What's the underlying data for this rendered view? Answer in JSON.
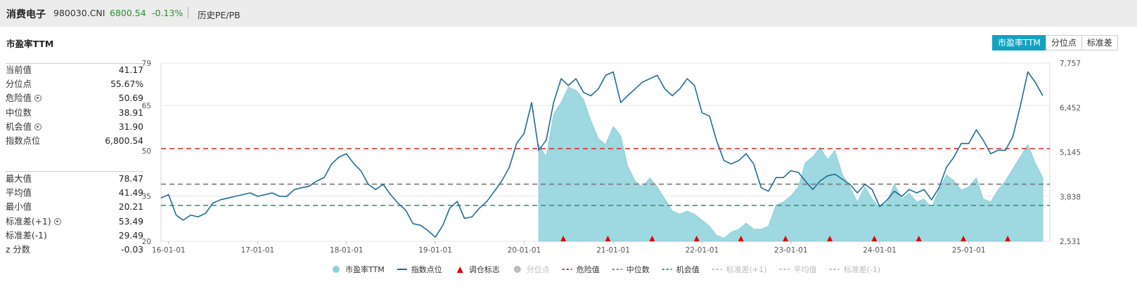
{
  "header": {
    "name": "消费电子",
    "code": "980030.CNI",
    "price": "6800.54",
    "change": "-0.13%",
    "link": "历史PE/PB"
  },
  "panel": {
    "title": "市盈率TTM",
    "tabs": [
      "市盈率TTM",
      "分位点",
      "标准差"
    ],
    "active_tab": "市盈率TTM"
  },
  "stats_top": [
    {
      "label": "当前值",
      "value": "41.17",
      "gear": false
    },
    {
      "label": "分位点",
      "value": "55.67%",
      "gear": false
    },
    {
      "label": "危险值",
      "value": "50.69",
      "gear": true
    },
    {
      "label": "中位数",
      "value": "38.91",
      "gear": false
    },
    {
      "label": "机会值",
      "value": "31.90",
      "gear": true
    },
    {
      "label": "指数点位",
      "value": "6,800.54",
      "gear": false
    }
  ],
  "stats_bottom": [
    {
      "label": "最大值",
      "value": "78.47",
      "gear": false
    },
    {
      "label": "平均值",
      "value": "41.49",
      "gear": false
    },
    {
      "label": "最小值",
      "value": "20.21",
      "gear": false
    },
    {
      "label": "标准差(+1)",
      "value": "53.49",
      "gear": true
    },
    {
      "label": "标准差(-1)",
      "value": "29.49",
      "gear": false
    },
    {
      "label": "z 分数",
      "value": "-0.03",
      "gear": false
    }
  ],
  "colors": {
    "pe_area": "#8dd1da",
    "index_line": "#1f6d93",
    "danger": "#d62728",
    "median": "#777777",
    "opportunity": "#2e9e6e",
    "marker": "#e00000",
    "disabled": "#bbbbbb",
    "tab_active": "#13a2c2"
  },
  "chart_data": {
    "type": "area",
    "x_tick_labels": [
      "16-01-01",
      "17-01-01",
      "18-01-01",
      "19-01-01",
      "20-01-01",
      "21-01-01",
      "22-01-01",
      "23-01-01",
      "24-01-01",
      "25-01-01"
    ],
    "x_range": [
      "2015-12-01",
      "2025-11-30"
    ],
    "y_left_ticks": [
      20,
      35,
      50,
      65,
      79
    ],
    "y_left_range": [
      20,
      79
    ],
    "y_right_ticks": [
      "2,531",
      "3,838",
      "5,145",
      "6,452",
      "7,757"
    ],
    "y_right_range": [
      2531,
      7757
    ],
    "reference_lines": [
      {
        "name": "危险值",
        "value": 50.69
      },
      {
        "name": "中位数",
        "value": 38.91
      },
      {
        "name": "机会值",
        "value": 31.9
      }
    ],
    "series": [
      {
        "name": "市盈率TTM",
        "kind": "area",
        "points": [
          [
            "2020-03-01",
            52
          ],
          [
            "2020-04-01",
            48
          ],
          [
            "2020-05-01",
            62
          ],
          [
            "2020-06-01",
            66
          ],
          [
            "2020-07-01",
            71
          ],
          [
            "2020-08-01",
            70
          ],
          [
            "2020-09-01",
            67
          ],
          [
            "2020-10-01",
            60
          ],
          [
            "2020-11-01",
            54
          ],
          [
            "2020-12-01",
            52
          ],
          [
            "2021-01-01",
            58
          ],
          [
            "2021-02-01",
            55
          ],
          [
            "2021-03-01",
            45
          ],
          [
            "2021-04-01",
            40
          ],
          [
            "2021-05-01",
            38
          ],
          [
            "2021-06-01",
            41
          ],
          [
            "2021-07-01",
            38
          ],
          [
            "2021-08-01",
            34
          ],
          [
            "2021-09-01",
            30
          ],
          [
            "2021-10-01",
            29
          ],
          [
            "2021-11-01",
            30
          ],
          [
            "2021-12-01",
            29
          ],
          [
            "2022-01-01",
            27
          ],
          [
            "2022-02-01",
            25
          ],
          [
            "2022-03-01",
            22
          ],
          [
            "2022-04-01",
            21
          ],
          [
            "2022-05-01",
            23
          ],
          [
            "2022-06-01",
            24
          ],
          [
            "2022-07-01",
            26
          ],
          [
            "2022-08-01",
            24
          ],
          [
            "2022-09-01",
            24
          ],
          [
            "2022-10-01",
            25
          ],
          [
            "2022-11-01",
            32
          ],
          [
            "2022-12-01",
            33
          ],
          [
            "2023-01-01",
            35
          ],
          [
            "2023-02-01",
            38
          ],
          [
            "2023-03-01",
            46
          ],
          [
            "2023-04-01",
            48
          ],
          [
            "2023-05-01",
            51
          ],
          [
            "2023-06-01",
            47
          ],
          [
            "2023-07-01",
            50
          ],
          [
            "2023-08-01",
            42
          ],
          [
            "2023-09-01",
            38
          ],
          [
            "2023-10-01",
            33
          ],
          [
            "2023-11-01",
            38
          ],
          [
            "2023-12-01",
            34
          ],
          [
            "2024-01-01",
            31
          ],
          [
            "2024-02-01",
            33
          ],
          [
            "2024-03-01",
            39
          ],
          [
            "2024-04-01",
            34
          ],
          [
            "2024-05-01",
            36
          ],
          [
            "2024-06-01",
            33
          ],
          [
            "2024-07-01",
            34
          ],
          [
            "2024-08-01",
            31
          ],
          [
            "2024-09-01",
            37
          ],
          [
            "2024-10-01",
            42
          ],
          [
            "2024-11-01",
            40
          ],
          [
            "2024-12-01",
            37
          ],
          [
            "2025-01-01",
            38
          ],
          [
            "2025-02-01",
            41
          ],
          [
            "2025-03-01",
            34
          ],
          [
            "2025-04-01",
            33
          ],
          [
            "2025-05-01",
            37
          ],
          [
            "2025-06-01",
            40
          ],
          [
            "2025-07-01",
            44
          ],
          [
            "2025-08-01",
            48
          ],
          [
            "2025-09-01",
            52
          ],
          [
            "2025-10-01",
            46
          ],
          [
            "2025-11-01",
            41
          ]
        ]
      },
      {
        "name": "指数点位",
        "kind": "line",
        "points": [
          [
            "2015-12-01",
            3800
          ],
          [
            "2016-01-01",
            3900
          ],
          [
            "2016-02-01",
            3300
          ],
          [
            "2016-03-01",
            3150
          ],
          [
            "2016-04-01",
            3300
          ],
          [
            "2016-05-01",
            3250
          ],
          [
            "2016-06-01",
            3350
          ],
          [
            "2016-07-01",
            3650
          ],
          [
            "2016-08-01",
            3750
          ],
          [
            "2016-09-01",
            3800
          ],
          [
            "2016-10-01",
            3850
          ],
          [
            "2016-11-01",
            3900
          ],
          [
            "2016-12-01",
            3950
          ],
          [
            "2017-01-01",
            3850
          ],
          [
            "2017-02-01",
            3900
          ],
          [
            "2017-03-01",
            3950
          ],
          [
            "2017-04-01",
            3850
          ],
          [
            "2017-05-01",
            3850
          ],
          [
            "2017-06-01",
            4050
          ],
          [
            "2017-07-01",
            4100
          ],
          [
            "2017-08-01",
            4150
          ],
          [
            "2017-09-01",
            4300
          ],
          [
            "2017-10-01",
            4400
          ],
          [
            "2017-11-01",
            4800
          ],
          [
            "2017-12-01",
            5000
          ],
          [
            "2018-01-01",
            5100
          ],
          [
            "2018-02-01",
            4800
          ],
          [
            "2018-03-01",
            4600
          ],
          [
            "2018-04-01",
            4200
          ],
          [
            "2018-05-01",
            4050
          ],
          [
            "2018-06-01",
            4200
          ],
          [
            "2018-07-01",
            3900
          ],
          [
            "2018-08-01",
            3650
          ],
          [
            "2018-09-01",
            3450
          ],
          [
            "2018-10-01",
            3050
          ],
          [
            "2018-11-01",
            3000
          ],
          [
            "2018-12-01",
            2850
          ],
          [
            "2019-01-01",
            2650
          ],
          [
            "2019-02-01",
            3000
          ],
          [
            "2019-03-01",
            3500
          ],
          [
            "2019-04-01",
            3700
          ],
          [
            "2019-05-01",
            3200
          ],
          [
            "2019-06-01",
            3250
          ],
          [
            "2019-07-01",
            3500
          ],
          [
            "2019-08-01",
            3700
          ],
          [
            "2019-09-01",
            4000
          ],
          [
            "2019-10-01",
            4300
          ],
          [
            "2019-11-01",
            4700
          ],
          [
            "2019-12-01",
            5400
          ],
          [
            "2020-01-01",
            5700
          ],
          [
            "2020-02-01",
            6600
          ],
          [
            "2020-03-01",
            5200
          ],
          [
            "2020-04-01",
            5500
          ],
          [
            "2020-05-01",
            6600
          ],
          [
            "2020-06-01",
            7300
          ],
          [
            "2020-07-01",
            7100
          ],
          [
            "2020-08-01",
            7300
          ],
          [
            "2020-09-01",
            6900
          ],
          [
            "2020-10-01",
            6800
          ],
          [
            "2020-11-01",
            7000
          ],
          [
            "2020-12-01",
            7400
          ],
          [
            "2021-01-01",
            7500
          ],
          [
            "2021-02-01",
            6600
          ],
          [
            "2021-03-01",
            6800
          ],
          [
            "2021-04-01",
            7000
          ],
          [
            "2021-05-01",
            7200
          ],
          [
            "2021-06-01",
            7300
          ],
          [
            "2021-07-01",
            7400
          ],
          [
            "2021-08-01",
            7000
          ],
          [
            "2021-09-01",
            6800
          ],
          [
            "2021-10-01",
            7000
          ],
          [
            "2021-11-01",
            7300
          ],
          [
            "2021-12-01",
            7100
          ],
          [
            "2022-01-01",
            6300
          ],
          [
            "2022-02-01",
            6200
          ],
          [
            "2022-03-01",
            5500
          ],
          [
            "2022-04-01",
            4900
          ],
          [
            "2022-05-01",
            4800
          ],
          [
            "2022-06-01",
            4900
          ],
          [
            "2022-07-01",
            5100
          ],
          [
            "2022-08-01",
            4800
          ],
          [
            "2022-09-01",
            4100
          ],
          [
            "2022-10-01",
            4000
          ],
          [
            "2022-11-01",
            4400
          ],
          [
            "2022-12-01",
            4400
          ],
          [
            "2023-01-01",
            4600
          ],
          [
            "2023-02-01",
            4550
          ],
          [
            "2023-03-01",
            4300
          ],
          [
            "2023-04-01",
            4050
          ],
          [
            "2023-05-01",
            4300
          ],
          [
            "2023-06-01",
            4450
          ],
          [
            "2023-07-01",
            4500
          ],
          [
            "2023-08-01",
            4350
          ],
          [
            "2023-09-01",
            4200
          ],
          [
            "2023-10-01",
            3950
          ],
          [
            "2023-11-01",
            4200
          ],
          [
            "2023-12-01",
            4050
          ],
          [
            "2024-01-01",
            3550
          ],
          [
            "2024-02-01",
            3750
          ],
          [
            "2024-03-01",
            4000
          ],
          [
            "2024-04-01",
            3850
          ],
          [
            "2024-05-01",
            4050
          ],
          [
            "2024-06-01",
            3950
          ],
          [
            "2024-07-01",
            4050
          ],
          [
            "2024-08-01",
            3750
          ],
          [
            "2024-09-01",
            4100
          ],
          [
            "2024-10-01",
            4700
          ],
          [
            "2024-11-01",
            5000
          ],
          [
            "2024-12-01",
            5400
          ],
          [
            "2025-01-01",
            5400
          ],
          [
            "2025-02-01",
            5800
          ],
          [
            "2025-03-01",
            5500
          ],
          [
            "2025-04-01",
            5100
          ],
          [
            "2025-05-01",
            5200
          ],
          [
            "2025-06-01",
            5200
          ],
          [
            "2025-07-01",
            5600
          ],
          [
            "2025-08-01",
            6500
          ],
          [
            "2025-09-01",
            7500
          ],
          [
            "2025-10-01",
            7200
          ],
          [
            "2025-11-01",
            6800
          ]
        ]
      }
    ],
    "rebalance_markers": [
      "2020-06-10",
      "2020-12-10",
      "2021-06-10",
      "2021-12-10",
      "2022-06-10",
      "2022-12-10",
      "2023-06-10",
      "2023-12-10",
      "2024-06-10",
      "2024-12-10",
      "2025-06-10"
    ],
    "legend": [
      {
        "label": "市盈率TTM",
        "style": "dot",
        "color": "#8dd1da",
        "enabled": true
      },
      {
        "label": "指数点位",
        "style": "line",
        "color": "#1f6d93",
        "enabled": true
      },
      {
        "label": "调仓标志",
        "style": "triangle",
        "color": "#e00000",
        "enabled": true
      },
      {
        "label": "分位点",
        "style": "dot",
        "color": "#bbbbbb",
        "enabled": false
      },
      {
        "label": "危险值",
        "style": "dash",
        "color": "#d62728",
        "enabled": true
      },
      {
        "label": "中位数",
        "style": "dash",
        "color": "#777777",
        "enabled": true
      },
      {
        "label": "机会值",
        "style": "dash",
        "color": "#2e9e6e",
        "enabled": true
      },
      {
        "label": "标准差(+1)",
        "style": "dash",
        "color": "#bbbbbb",
        "enabled": false
      },
      {
        "label": "平均值",
        "style": "dash",
        "color": "#bbbbbb",
        "enabled": false
      },
      {
        "label": "标准差(-1)",
        "style": "dash",
        "color": "#bbbbbb",
        "enabled": false
      }
    ]
  }
}
